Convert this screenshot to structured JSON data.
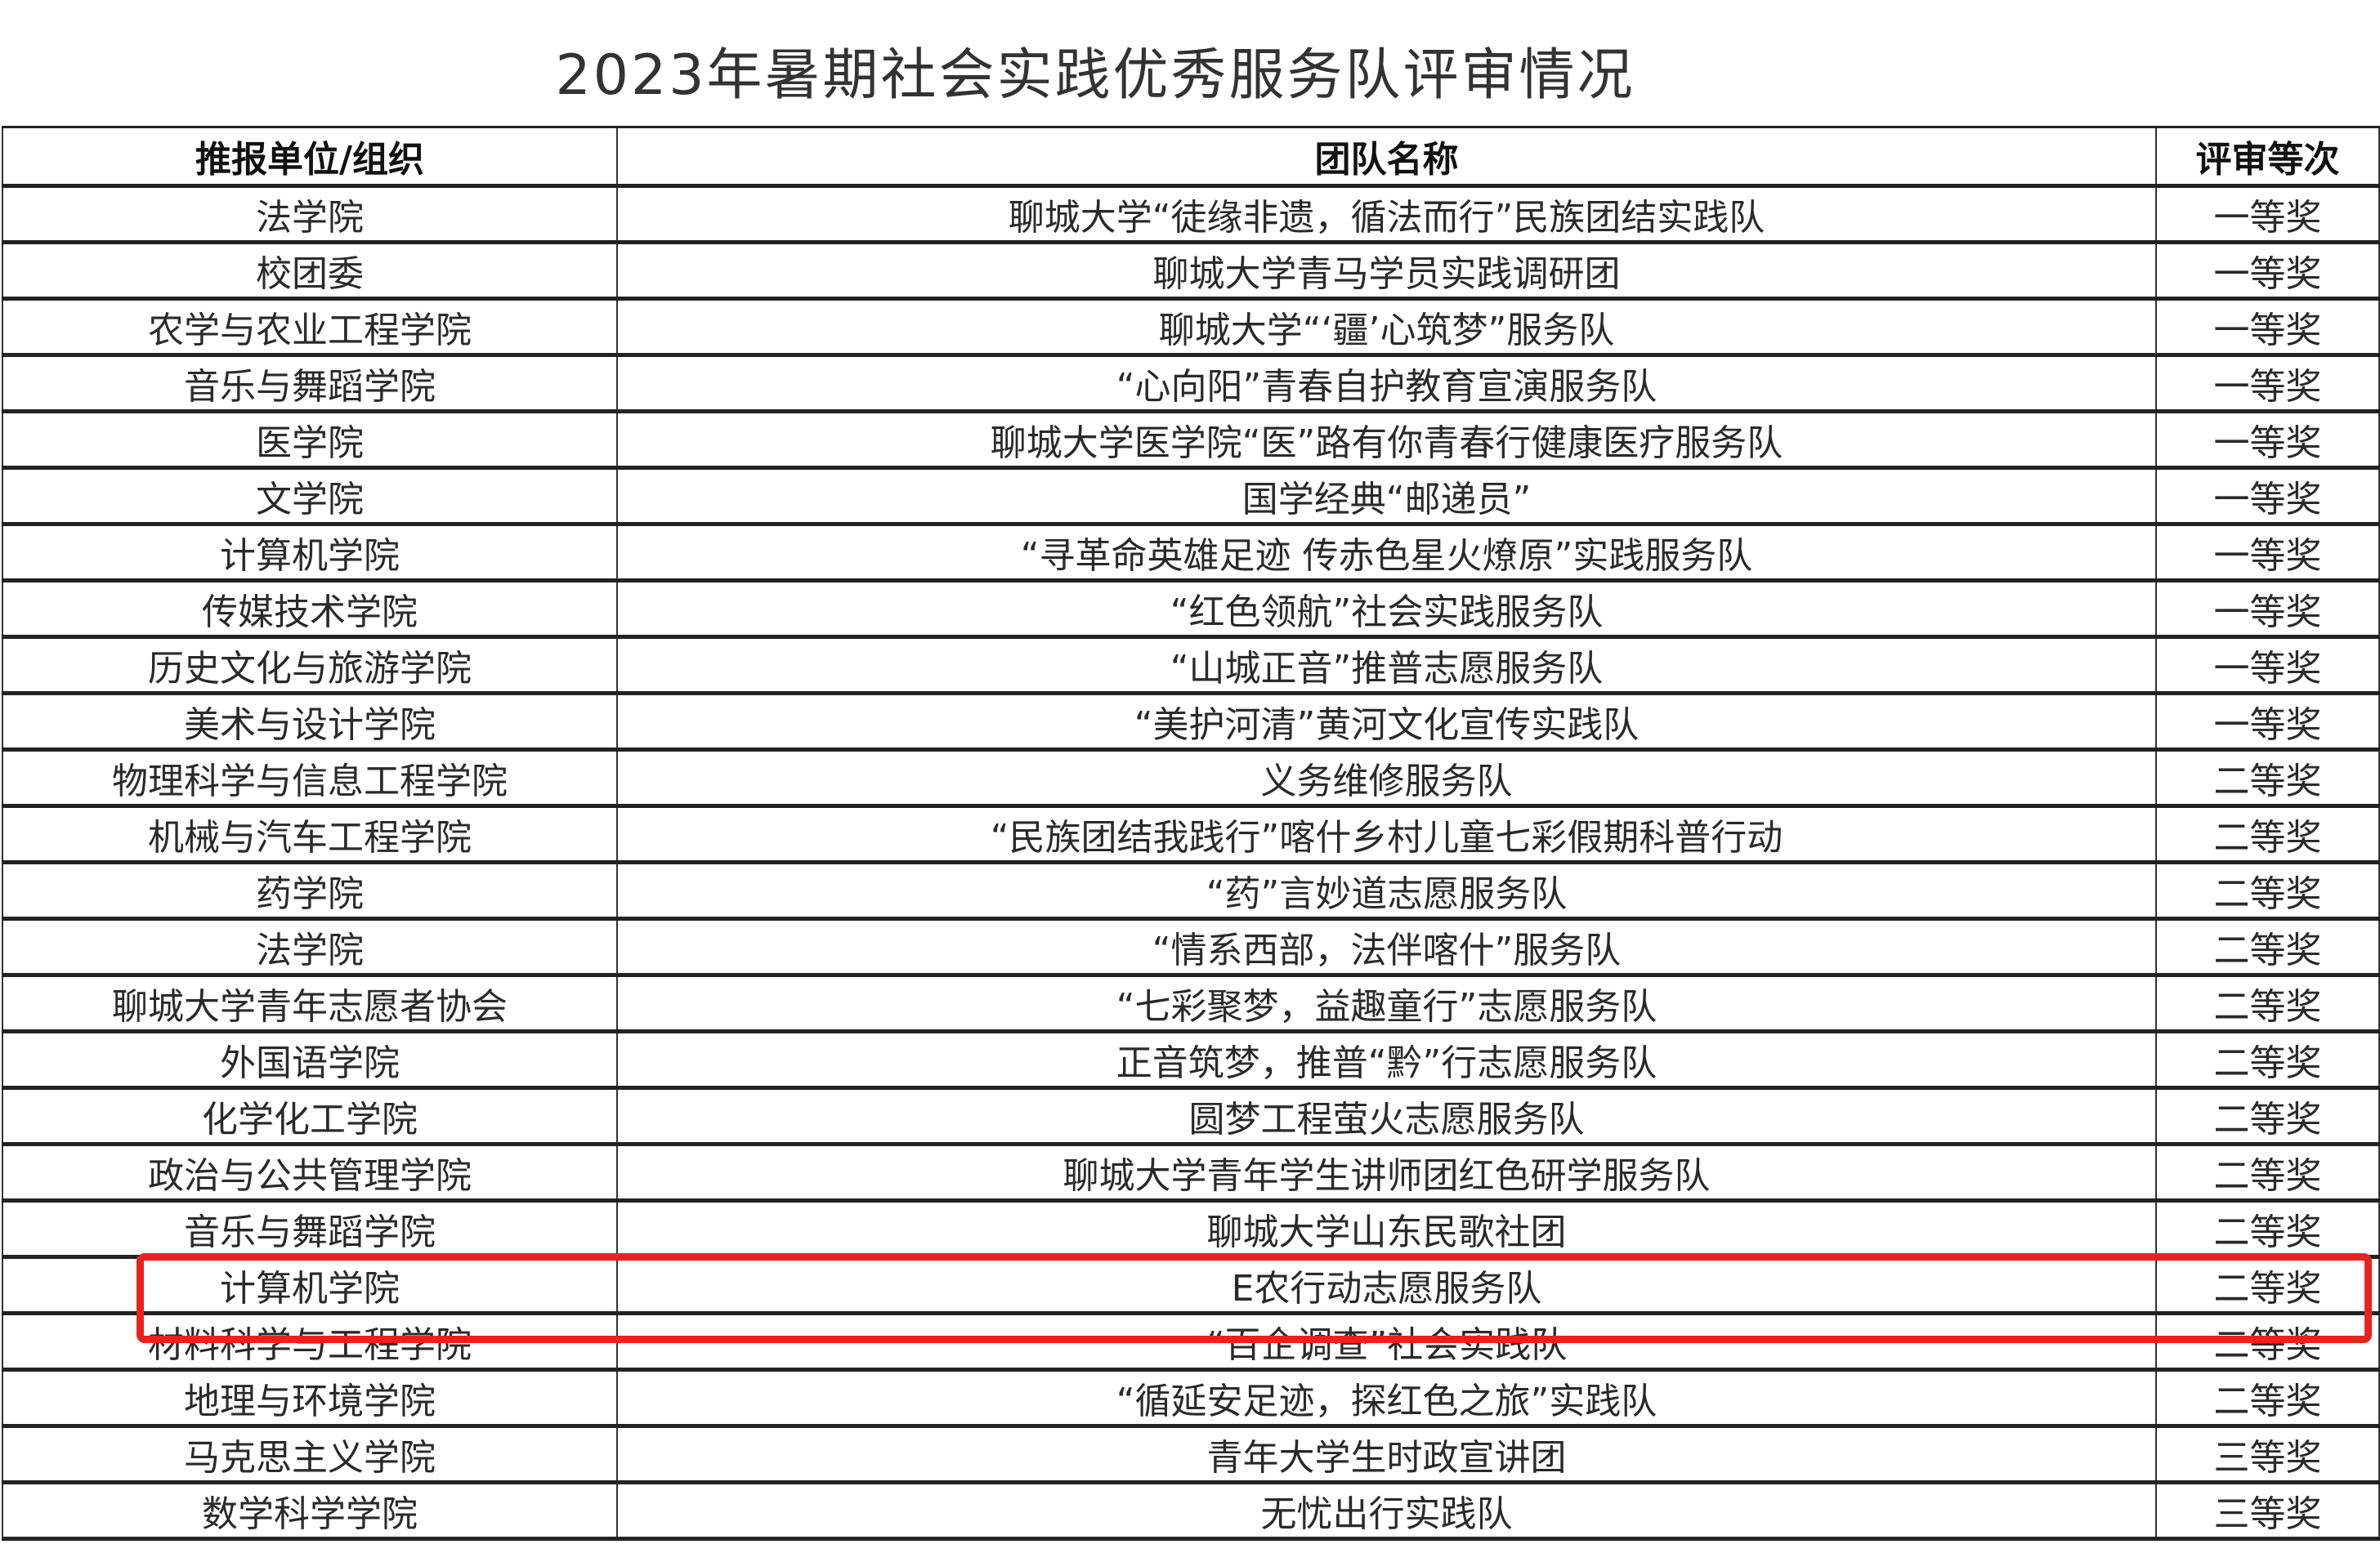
{
  "title": "2023年暑期社会实践优秀服务队评审情况",
  "headers": [
    "推报单位/组织",
    "团队名称",
    "评审等次"
  ],
  "rows": [
    [
      "法学院",
      "聊城大学“徒缘非遗，循法而行”民族团结实践队",
      "一等奖"
    ],
    [
      "校团委",
      "聊城大学青马学员实践调研团",
      "一等奖"
    ],
    [
      "农学与农业工程学院",
      "聊城大学“‘疆’心筑梦”服务队",
      "一等奖"
    ],
    [
      "音乐与舞蹈学院",
      "“心向阳”青春自护教育宣演服务队",
      "一等奖"
    ],
    [
      "医学院",
      "聊城大学医学院“医”路有你青春行健康医疗服务队",
      "一等奖"
    ],
    [
      "文学院",
      "国学经典“邮递员”",
      "一等奖"
    ],
    [
      "计算机学院",
      "“寻革命英雄足迹 传赤色星火燎原”实践服务队",
      "一等奖"
    ],
    [
      "传媒技术学院",
      "“红色领航”社会实践服务队",
      "一等奖"
    ],
    [
      "历史文化与旅游学院",
      "“山城正音”推普志愿服务队",
      "一等奖"
    ],
    [
      "美术与设计学院",
      "“美护河清”黄河文化宣传实践队",
      "一等奖"
    ],
    [
      "物理科学与信息工程学院",
      "义务维修服务队",
      "二等奖"
    ],
    [
      "机械与汽车工程学院",
      "“民族团结我践行”喀什乡村儿童七彩假期科普行动",
      "二等奖"
    ],
    [
      "药学院",
      "“药”言妙道志愿服务队",
      "二等奖"
    ],
    [
      "法学院",
      "“情系西部，法伴喀什”服务队",
      "二等奖"
    ],
    [
      "聊城大学青年志愿者协会",
      "“七彩聚梦，益趣童行”志愿服务队",
      "二等奖"
    ],
    [
      "外国语学院",
      "正音筑梦，推普“黔”行志愿服务队",
      "二等奖"
    ],
    [
      "化学化工学院",
      "圆梦工程萤火志愿服务队",
      "二等奖"
    ],
    [
      "政治与公共管理学院",
      "聊城大学青年学生讲师团红色研学服务队",
      "二等奖"
    ],
    [
      "音乐与舞蹈学院",
      "聊城大学山东民歌社团",
      "二等奖"
    ],
    [
      "计算机学院",
      "E农行动志愿服务队",
      "二等奖"
    ],
    [
      "材料科学与工程学院",
      "“百企调查”社会实践队",
      "二等奖"
    ],
    [
      "地理与环境学院",
      "“循延安足迹，探红色之旅”实践队",
      "二等奖"
    ],
    [
      "马克思主义学院",
      "青年大学生时政宣讲团",
      "三等奖"
    ],
    [
      "数学科学学院",
      "无忧出行实践队",
      "三等奖"
    ]
  ],
  "highlight_color": "#e8231f"
}
